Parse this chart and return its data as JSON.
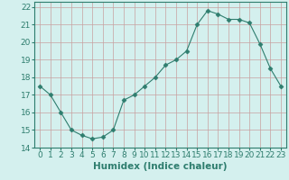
{
  "x": [
    0,
    1,
    2,
    3,
    4,
    5,
    6,
    7,
    8,
    9,
    10,
    11,
    12,
    13,
    14,
    15,
    16,
    17,
    18,
    19,
    20,
    21,
    22,
    23
  ],
  "y": [
    17.5,
    17.0,
    16.0,
    15.0,
    14.7,
    14.5,
    14.6,
    15.0,
    16.7,
    17.0,
    17.5,
    18.0,
    18.7,
    19.0,
    19.5,
    21.0,
    21.8,
    21.6,
    21.3,
    21.3,
    21.1,
    19.9,
    18.5,
    17.5
  ],
  "title": "",
  "xlabel": "Humidex (Indice chaleur)",
  "ylabel": "",
  "xlim": [
    -0.5,
    23.5
  ],
  "ylim": [
    14,
    22.3
  ],
  "yticks": [
    14,
    15,
    16,
    17,
    18,
    19,
    20,
    21,
    22
  ],
  "xticks": [
    0,
    1,
    2,
    3,
    4,
    5,
    6,
    7,
    8,
    9,
    10,
    11,
    12,
    13,
    14,
    15,
    16,
    17,
    18,
    19,
    20,
    21,
    22,
    23
  ],
  "line_color": "#2e7d6e",
  "marker": "D",
  "marker_size": 2.5,
  "bg_color": "#d4f0ee",
  "grid_color": "#c8a0a0",
  "axes_color": "#2e7d6e",
  "tick_label_fontsize": 6.5,
  "xlabel_fontsize": 7.5
}
